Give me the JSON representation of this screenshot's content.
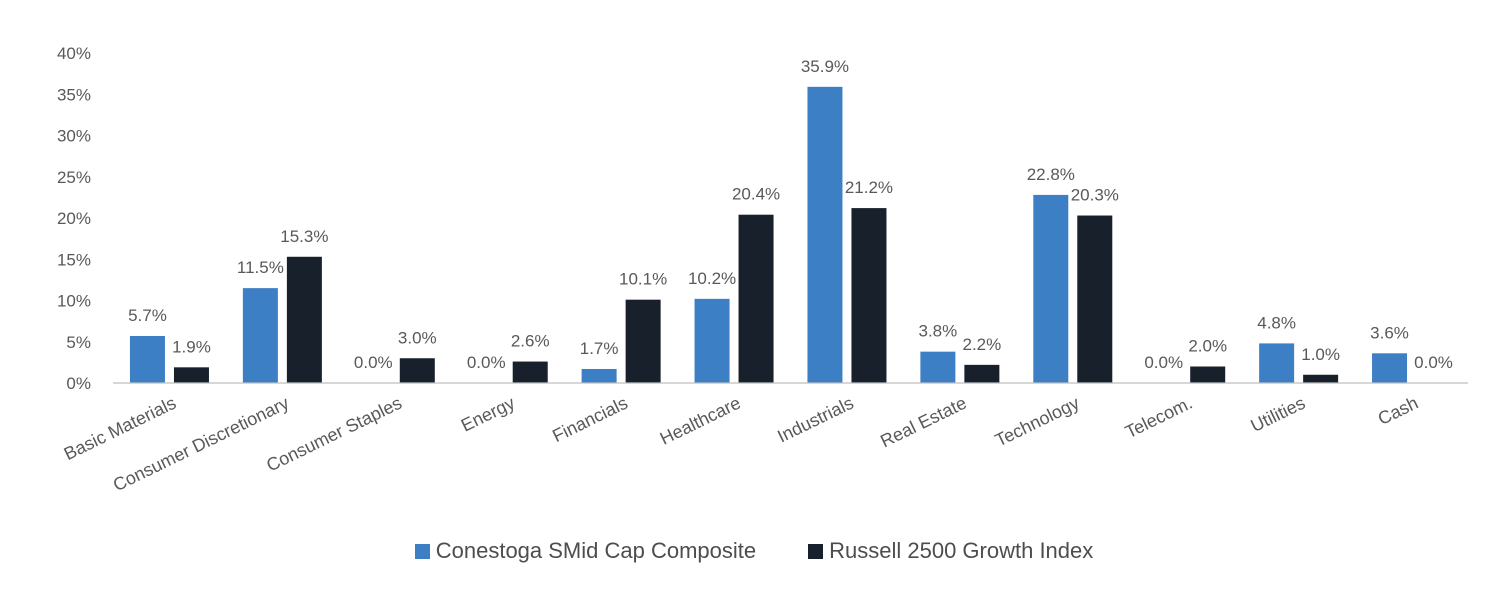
{
  "chart_data": {
    "type": "bar",
    "title": "",
    "xlabel": "",
    "ylabel": "",
    "ylim": [
      0,
      40
    ],
    "yticks": [
      "0%",
      "5%",
      "10%",
      "15%",
      "20%",
      "25%",
      "30%",
      "35%",
      "40%"
    ],
    "categories": [
      "Basic Materials",
      "Consumer Discretionary",
      "Consumer Staples",
      "Energy",
      "Financials",
      "Healthcare",
      "Industrials",
      "Real Estate",
      "Technology",
      "Telecom.",
      "Utilities",
      "Cash"
    ],
    "series": [
      {
        "name": "Conestoga SMid Cap Composite",
        "color": "#3d7fc4",
        "values": [
          5.7,
          11.5,
          0.0,
          0.0,
          1.7,
          10.2,
          35.9,
          3.8,
          22.8,
          0.0,
          4.8,
          3.6
        ],
        "labels": [
          "5.7%",
          "11.5%",
          "0.0%",
          "0.0%",
          "1.7%",
          "10.2%",
          "35.9%",
          "3.8%",
          "22.8%",
          "0.0%",
          "4.8%",
          "3.6%"
        ]
      },
      {
        "name": "Russell 2500 Growth Index",
        "color": "#17202b",
        "values": [
          1.9,
          15.3,
          3.0,
          2.6,
          10.1,
          20.4,
          21.2,
          2.2,
          20.3,
          2.0,
          1.0,
          0.0
        ],
        "labels": [
          "1.9%",
          "15.3%",
          "3.0%",
          "2.6%",
          "10.1%",
          "20.4%",
          "21.2%",
          "2.2%",
          "20.3%",
          "2.0%",
          "1.0%",
          "0.0%"
        ]
      }
    ],
    "legend_position": "bottom",
    "grid": false
  }
}
